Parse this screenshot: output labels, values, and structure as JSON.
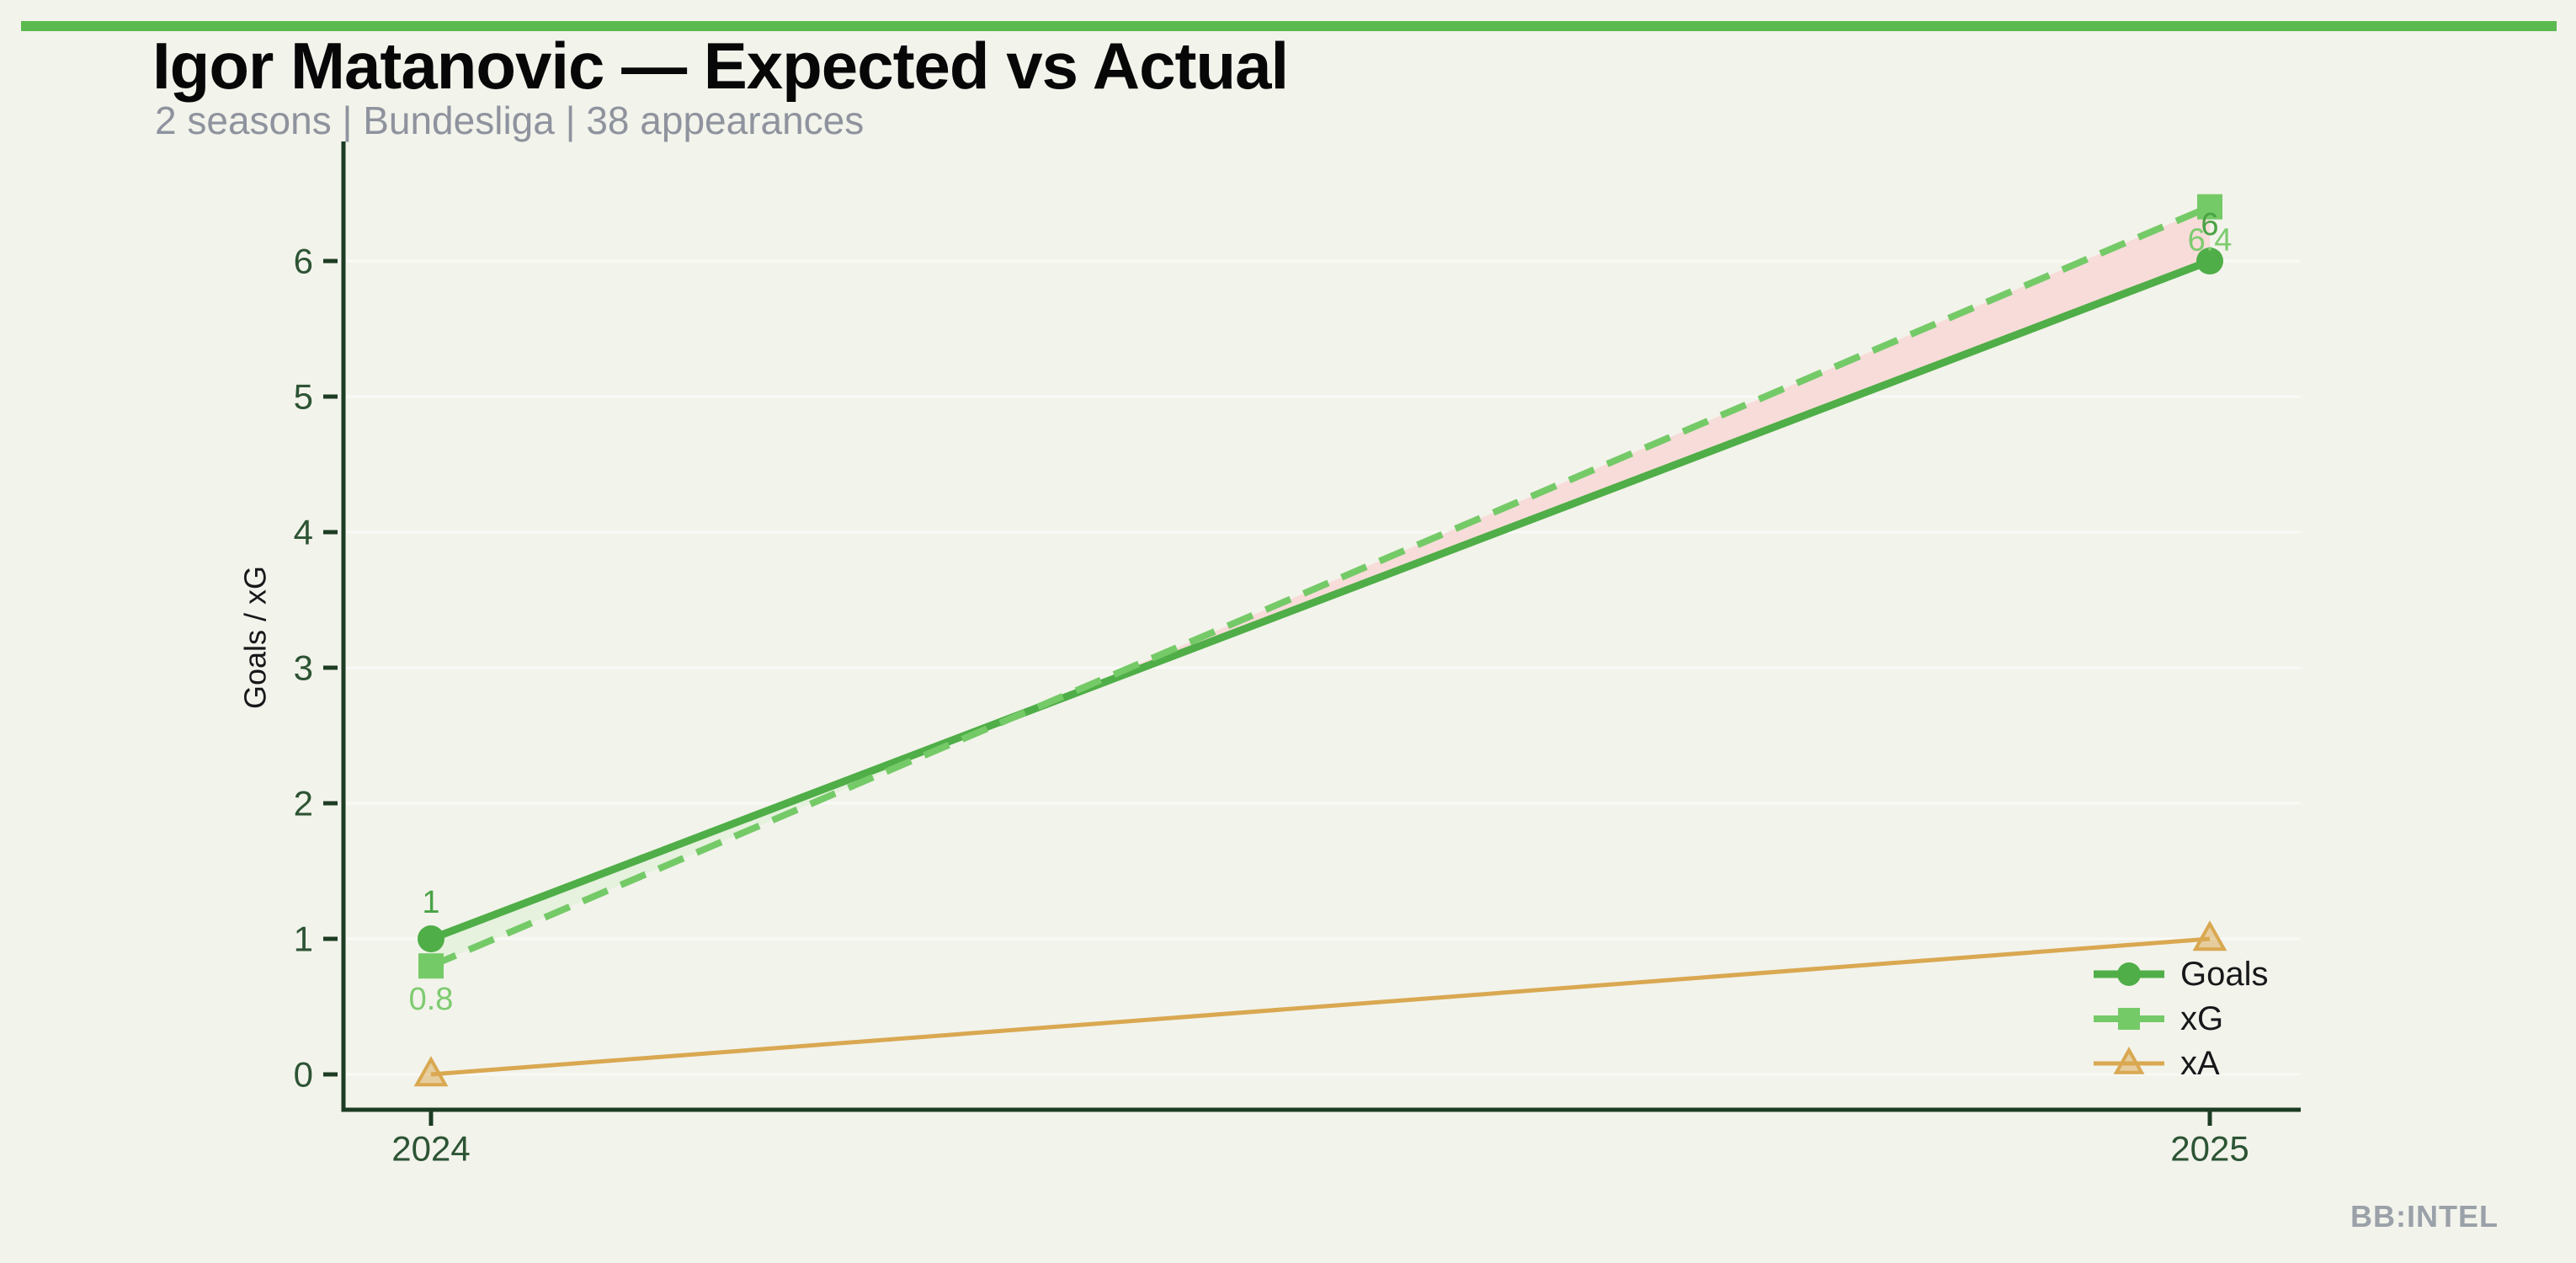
{
  "page": {
    "title": "Igor Matanovic — Expected vs Actual",
    "subtitle": "2 seasons | Bundesliga | 38 appearances",
    "watermark": "BB:INTEL"
  },
  "colors": {
    "background": "#F2F3EB",
    "top_bar": "#5BBA4F",
    "title": "#070708",
    "subtitle": "#8E939E",
    "watermark": "#9BA1A9",
    "axis": "#1C3C23",
    "tick_label": "#2D5434",
    "axis_title": "#16181A",
    "legend_text": "#16181A",
    "grid": "#FFFFFF",
    "goals": "#4FAE47",
    "goals_label": "#49A345",
    "xg": "#75CA68",
    "xg_label": "#7ECB70",
    "xa": "#D9A851",
    "over_fill": "#E6F1DE",
    "under_fill": "#F7DCD9"
  },
  "chart_data": {
    "type": "line",
    "title": "Igor Matanovic — Expected vs Actual",
    "subtitle": "2 seasons | Bundesliga | 38 appearances",
    "xlabel": "",
    "ylabel": "Goals / xG",
    "categories": [
      "2024",
      "2025"
    ],
    "series": [
      {
        "name": "Goals",
        "values": [
          1,
          6
        ],
        "marker": "circle",
        "line": "solid",
        "color": "#4FAE47",
        "labels": [
          "1",
          "6"
        ],
        "label_position": "above"
      },
      {
        "name": "xG",
        "values": [
          0.8,
          6.4
        ],
        "marker": "square",
        "line": "dashed",
        "color": "#75CA68",
        "labels": [
          "0.8",
          "6.4"
        ],
        "label_position": "below"
      },
      {
        "name": "xA",
        "values": [
          0.0,
          1.0
        ],
        "marker": "triangle",
        "line": "solid",
        "color": "#D9A851",
        "labels": null,
        "label_position": null
      }
    ],
    "yticks": [
      0,
      1,
      2,
      3,
      4,
      5,
      6
    ],
    "ylim": [
      0,
      6.9
    ],
    "grid": "horizontal",
    "legend_position": "lower right",
    "legend_entries": [
      "Goals",
      "xG",
      "xA"
    ],
    "fill_between": {
      "series": [
        "Goals",
        "xG"
      ],
      "actual_above_color": "#E6F1DE",
      "expected_above_color": "#F7DCD9"
    }
  }
}
